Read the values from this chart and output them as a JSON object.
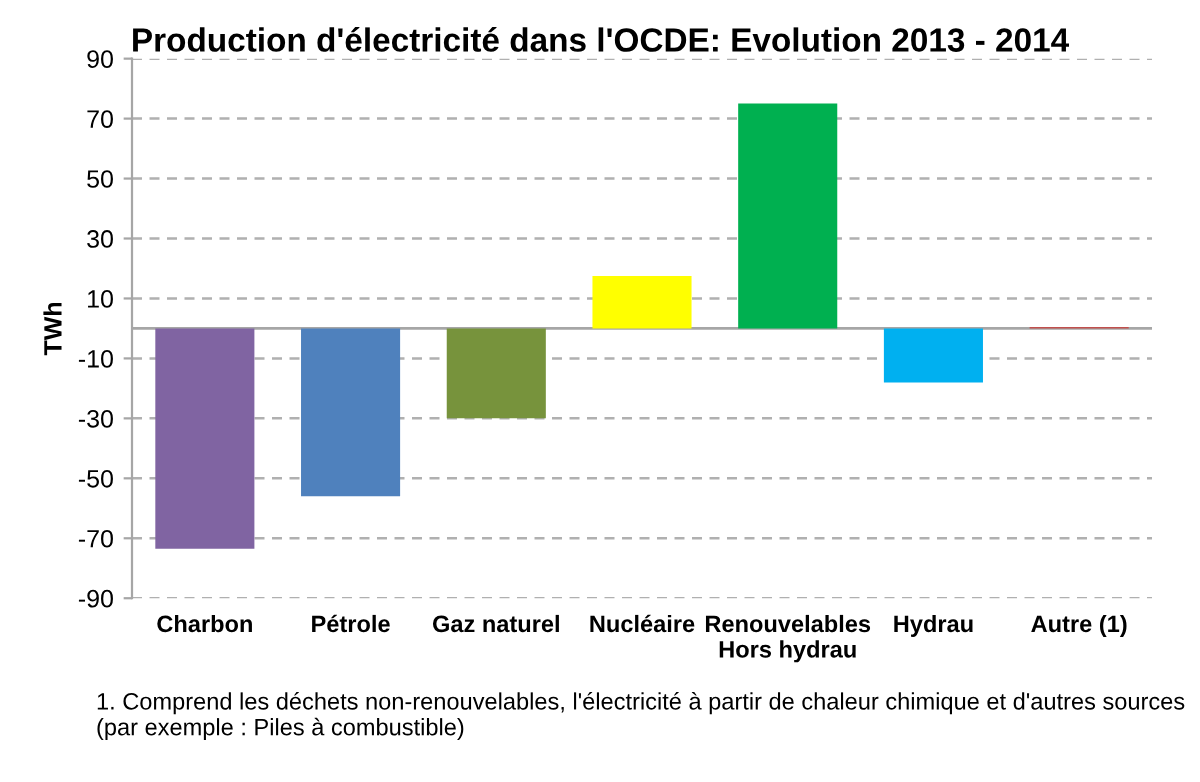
{
  "chart_data": {
    "type": "bar",
    "title": "Production d'électricité dans l'OCDE: Evolution 2013 - 2014",
    "ylabel": "TWh",
    "categories": [
      "Charbon",
      "Pétrole",
      "Gaz naturel",
      "Nucléaire",
      "Renouvelables\nHors hydrau",
      "Hydrau",
      "Autre (1)"
    ],
    "values": [
      -73.5,
      -56,
      -30,
      17.5,
      75,
      -18,
      0.5
    ],
    "colors": [
      "#8064a2",
      "#4f81bd",
      "#77933c",
      "#ffff00",
      "#00b050",
      "#00b0f0",
      "#c0504d"
    ],
    "ylim": [
      -90,
      90
    ],
    "yticks": [
      -90,
      -70,
      -50,
      -30,
      -10,
      10,
      30,
      50,
      70,
      90
    ],
    "grid": "y",
    "annotations": [
      "1. Comprend les déchets non-renouvelables, l'électricité à partir de chaleur chimique et d'autres sources (par exemple : Piles à combustible)"
    ]
  }
}
